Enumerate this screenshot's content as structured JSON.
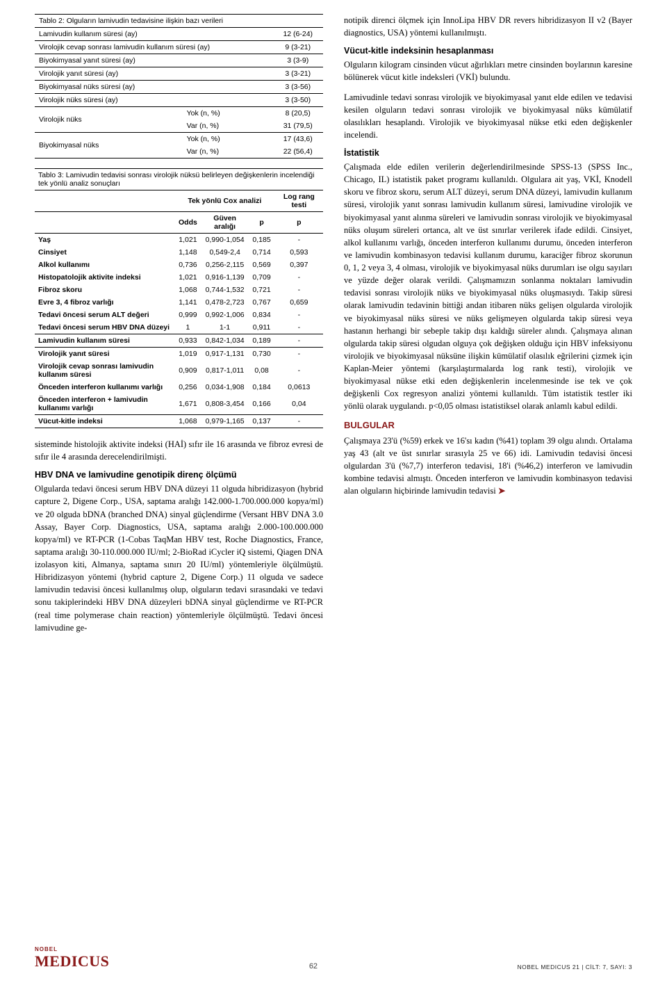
{
  "table2": {
    "title": "Tablo 2: Olguların lamivudin tedavisine ilişkin bazı verileri",
    "rows": [
      {
        "label": "Lamivudin kullanım süresi (ay)",
        "value": "12 (6-24)"
      },
      {
        "label": "Virolojik cevap sonrası lamivudin kullanım süresi (ay)",
        "value": "9 (3-21)"
      },
      {
        "label": "Biyokimyasal yanıt süresi (ay)",
        "value": "3 (3-9)"
      },
      {
        "label": "Virolojik yanıt süresi (ay)",
        "value": "3 (3-21)"
      },
      {
        "label": "Biyokimyasal nüks süresi (ay)",
        "value": "3 (3-56)"
      },
      {
        "label": "Virolojik nüks süresi (ay)",
        "value": "3 (3-50)"
      }
    ],
    "grouped": [
      {
        "group": "Virolojik nüks",
        "sub": [
          {
            "label": "Yok (n, %)",
            "value": "8 (20,5)"
          },
          {
            "label": "Var (n, %)",
            "value": "31 (79,5)"
          }
        ]
      },
      {
        "group": "Biyokimyasal nüks",
        "sub": [
          {
            "label": "Yok (n, %)",
            "value": "17 (43,6)"
          },
          {
            "label": "Var (n, %)",
            "value": "22 (56,4)"
          }
        ]
      }
    ]
  },
  "table3": {
    "title": "Tablo 3: Lamivudin tedavisi sonrası virolojik nüksü belirleyen değişkenlerin incelendiği tek yönlü analiz sonuçları",
    "col_header_group": "Tek yönlü Cox analizi",
    "col_right_group": "Log rang testi",
    "cols": [
      "Odds",
      "Güven aralığı",
      "p",
      "p"
    ],
    "rows": [
      {
        "label": "Yaş",
        "odds": "1,021",
        "ci": "0,990-1,054",
        "p": "0,185",
        "pr": "-"
      },
      {
        "label": "Cinsiyet",
        "odds": "1,148",
        "ci": "0,549-2,4",
        "p": "0,714",
        "pr": "0,593"
      },
      {
        "label": "Alkol kullanımı",
        "odds": "0,736",
        "ci": "0,256-2,115",
        "p": "0,569",
        "pr": "0,397"
      },
      {
        "label": "Histopatolojik aktivite indeksi",
        "odds": "1,021",
        "ci": "0,916-1,139",
        "p": "0,709",
        "pr": "-"
      },
      {
        "label": "Fibroz skoru",
        "odds": "1,068",
        "ci": "0,744-1,532",
        "p": "0,721",
        "pr": "-"
      },
      {
        "label": "Evre 3, 4 fibroz varlığı",
        "odds": "1,141",
        "ci": "0,478-2,723",
        "p": "0,767",
        "pr": "0,659"
      },
      {
        "label": "Tedavi öncesi serum ALT değeri",
        "odds": "0,999",
        "ci": "0,992-1,006",
        "p": "0,834",
        "pr": "-"
      },
      {
        "label": "Tedavi öncesi serum HBV DNA düzeyi",
        "odds": "1",
        "ci": "1-1",
        "p": "0,911",
        "pr": "-"
      },
      {
        "label": "Lamivudin kullanım süresi",
        "odds": "0,933",
        "ci": "0,842-1,034",
        "p": "0,189",
        "pr": "-",
        "section": true
      },
      {
        "label": "Virolojik yanıt süresi",
        "odds": "1,019",
        "ci": "0,917-1,131",
        "p": "0,730",
        "pr": "-",
        "section": true
      },
      {
        "label": "Virolojik cevap sonrası lamivudin kullanım süresi",
        "odds": "0,909",
        "ci": "0,817-1,011",
        "p": "0,08",
        "pr": "-"
      },
      {
        "label": "Önceden interferon kullanımı varlığı",
        "odds": "0,256",
        "ci": "0,034-1,908",
        "p": "0,184",
        "pr": "0,0613"
      },
      {
        "label": "Önceden interferon + lamivudin kullanımı varlığı",
        "odds": "1,671",
        "ci": "0,808-3,454",
        "p": "0,166",
        "pr": "0,04"
      },
      {
        "label": "Vücut-kitle indeksi",
        "odds": "1,068",
        "ci": "0,979-1,165",
        "p": "0,137",
        "pr": "-",
        "section": true
      }
    ]
  },
  "left_body": {
    "p1": "sisteminde histolojik aktivite indeksi (HAİ) sıfır ile 16 arasında ve fibroz evresi de sıfır ile 4 arasında derecelendirilmişti.",
    "h1": "HBV DNA ve lamivudine genotipik direnç ölçümü",
    "p2": "Olgularda tedavi öncesi serum HBV DNA düzeyi 11 olguda hibridizasyon (hybrid capture 2, Digene Corp., USA, saptama aralığı 142.000-1.700.000.000 kopya/ml) ve 20 olguda bDNA (branched DNA) sinyal güçlendirme (Versant HBV DNA 3.0 Assay, Bayer Corp. Diagnostics, USA, saptama aralığı 2.000-100.000.000 kopya/ml) ve RT-PCR (1-Cobas TaqMan HBV test, Roche Diagnostics, France, saptama aralığı 30-110.000.000 IU/ml; 2-BioRad iCycler iQ sistemi, Qiagen DNA izolasyon kiti, Almanya, saptama sınırı 20 IU/ml) yöntemleriyle ölçülmüştü. Hibridizasyon yöntemi (hybrid capture 2, Digene Corp.) 11 olguda ve sadece lamivudin tedavisi öncesi kullanılmış olup, olguların tedavi sırasındaki ve tedavi sonu takiplerindeki HBV DNA düzeyleri bDNA sinyal güçlendirme ve RT-PCR (real time polymerase chain reaction) yöntemleriyle ölçülmüştü. Tedavi öncesi lamivudine ge-"
  },
  "right_body": {
    "p1": "notipik direnci ölçmek için InnoLipa HBV DR revers hibridizasyon II v2 (Bayer diagnostics, USA) yöntemi kullanılmıştı.",
    "h1": "Vücut-kitle indeksinin hesaplanması",
    "p2": "Olguların kilogram cinsinden vücut ağırlıkları metre cinsinden boylarının karesine bölünerek vücut kitle indeksleri (VKİ) bulundu.",
    "p3": "Lamivudinle tedavi sonrası virolojik ve biyokimyasal yanıt elde edilen ve tedavisi kesilen olguların tedavi sonrası virolojik ve biyokimyasal nüks kümülatif olasılıkları hesaplandı. Virolojik ve biyokimyasal nükse etki eden değişkenler incelendi.",
    "h2": "İstatistik",
    "p4": "Çalışmada elde edilen verilerin değerlendirilmesinde SPSS-13 (SPSS Inc., Chicago, IL) istatistik paket programı kullanıldı. Olgulara ait yaş, VKİ, Knodell skoru ve fibroz skoru, serum ALT düzeyi, serum DNA düzeyi, lamivudin kullanım süresi, virolojik yanıt sonrası lamivudin kullanım süresi, lamivudine virolojik ve biyokimyasal yanıt alınma süreleri ve lamivudin sonrası virolojik ve biyokimyasal nüks oluşum süreleri ortanca, alt ve üst sınırlar verilerek ifade edildi. Cinsiyet, alkol kullanımı varlığı, önceden interferon kullanımı durumu, önceden interferon ve lamivudin kombinasyon tedavisi kullanım durumu, karaciğer fibroz skorunun 0, 1, 2 veya 3, 4 olması, virolojik ve biyokimyasal nüks durumları ise olgu sayıları ve yüzde değer olarak verildi. Çalışmamızın sonlanma noktaları lamivudin tedavisi sonrası virolojik nüks ve biyokimyasal nüks oluşmasıydı. Takip süresi olarak lamivudin tedavinin bittiği andan itibaren nüks gelişen olgularda virolojik ve biyokimyasal nüks süresi ve nüks gelişmeyen olgularda takip süresi veya hastanın herhangi bir sebeple takip dışı kaldığı süreler alındı. Çalışmaya alınan olgularda takip süresi olgudan olguya çok değişken olduğu için HBV infeksiyonu virolojik ve biyokimyasal nüksüne ilişkin kümülatif olasılık eğrilerini çizmek için Kaplan-Meier yöntemi (karşılaştırmalarda log rank testi), virolojik ve biyokimyasal nükse etki eden değişkenlerin incelenmesinde ise tek ve çok değişkenli Cox regresyon analizi yöntemi kullanıldı. Tüm istatistik testler iki yönlü olarak uygulandı. p<0,05 olması istatistiksel olarak anlamlı kabul edildi.",
    "h3": "BULGULAR",
    "p5": "Çalışmaya 23'ü (%59) erkek ve 16'sı kadın (%41) toplam 39 olgu alındı. Ortalama yaş 43 (alt ve üst sınırlar sırasıyla 25 ve 66) idi. Lamivudin tedavisi öncesi olgulardan 3'ü (%7,7) interferon tedavisi, 18'i (%46,2) interferon ve lamivudin kombine tedavisi almıştı. Önceden interferon ve lamivudin kombinasyon tedavisi alan olguların hiçbirinde lamivudin tedavisi "
  },
  "footer": {
    "logo_small": "NOBEL",
    "logo_big": "MEDICUS",
    "page": "62",
    "right": "NOBEL MEDICUS 21 | CİLT: 7, SAYI: 3"
  }
}
